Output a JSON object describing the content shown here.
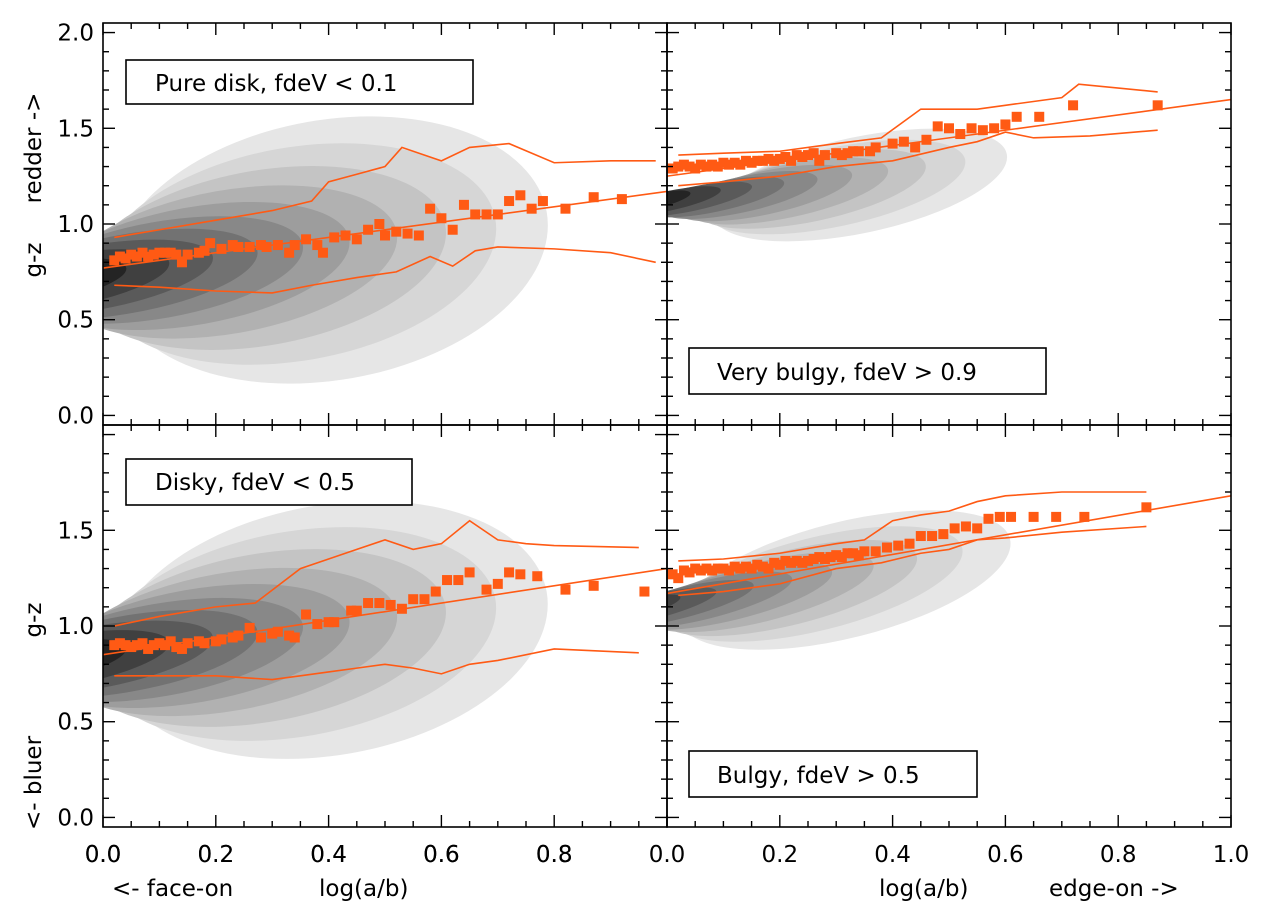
{
  "colors": {
    "accent": "#ff5a14",
    "contour_levels": [
      "#e6e6e6",
      "#d6d6d6",
      "#c4c4c4",
      "#b1b1b1",
      "#9d9d9d",
      "#888888",
      "#727272",
      "#5a5a5a",
      "#404040",
      "#242424"
    ]
  },
  "axes_text": {
    "xlabel_left": "<- face-on",
    "xlabel_left_mid": "log(a/b)",
    "xlabel_right_mid": "log(a/b)",
    "xlabel_right": "edge-on ->",
    "ylabel_top_extra": "redder ->",
    "ylabel_top": "g-z",
    "ylabel_bottom": "g-z",
    "ylabel_bottom_extra": "<- bluer"
  },
  "chart_data": [
    {
      "panel": "top-left",
      "type": "scatter",
      "annotation": "Pure disk, fdeV < 0.1",
      "xlim": [
        0,
        1.0
      ],
      "ylim": [
        -0.05,
        2.05
      ],
      "x_ticks": [
        "0.0",
        "0.2",
        "0.4",
        "0.6",
        "0.8"
      ],
      "y_ticks": [
        "0.0",
        "0.5",
        "1.0",
        "1.5",
        "2.0"
      ],
      "fit_line": [
        [
          0.0,
          0.77
        ],
        [
          1.0,
          1.17
        ]
      ],
      "upper_line": [
        [
          0.02,
          0.93
        ],
        [
          0.1,
          0.97
        ],
        [
          0.2,
          1.02
        ],
        [
          0.3,
          1.07
        ],
        [
          0.37,
          1.12
        ],
        [
          0.4,
          1.22
        ],
        [
          0.45,
          1.26
        ],
        [
          0.5,
          1.3
        ],
        [
          0.53,
          1.4
        ],
        [
          0.6,
          1.33
        ],
        [
          0.65,
          1.4
        ],
        [
          0.72,
          1.42
        ],
        [
          0.8,
          1.32
        ],
        [
          0.9,
          1.33
        ],
        [
          0.98,
          1.33
        ]
      ],
      "lower_line": [
        [
          0.02,
          0.68
        ],
        [
          0.1,
          0.67
        ],
        [
          0.2,
          0.65
        ],
        [
          0.3,
          0.64
        ],
        [
          0.37,
          0.68
        ],
        [
          0.45,
          0.72
        ],
        [
          0.52,
          0.75
        ],
        [
          0.58,
          0.83
        ],
        [
          0.62,
          0.78
        ],
        [
          0.66,
          0.86
        ],
        [
          0.7,
          0.88
        ],
        [
          0.8,
          0.87
        ],
        [
          0.9,
          0.85
        ],
        [
          0.98,
          0.8
        ]
      ],
      "points": [
        [
          0.02,
          0.81
        ],
        [
          0.03,
          0.83
        ],
        [
          0.04,
          0.82
        ],
        [
          0.05,
          0.84
        ],
        [
          0.06,
          0.83
        ],
        [
          0.07,
          0.85
        ],
        [
          0.08,
          0.83
        ],
        [
          0.09,
          0.84
        ],
        [
          0.1,
          0.85
        ],
        [
          0.11,
          0.85
        ],
        [
          0.12,
          0.85
        ],
        [
          0.13,
          0.84
        ],
        [
          0.14,
          0.8
        ],
        [
          0.15,
          0.84
        ],
        [
          0.17,
          0.85
        ],
        [
          0.18,
          0.86
        ],
        [
          0.19,
          0.9
        ],
        [
          0.21,
          0.87
        ],
        [
          0.23,
          0.89
        ],
        [
          0.24,
          0.88
        ],
        [
          0.26,
          0.88
        ],
        [
          0.28,
          0.89
        ],
        [
          0.29,
          0.88
        ],
        [
          0.31,
          0.89
        ],
        [
          0.33,
          0.85
        ],
        [
          0.34,
          0.89
        ],
        [
          0.36,
          0.92
        ],
        [
          0.38,
          0.89
        ],
        [
          0.39,
          0.85
        ],
        [
          0.41,
          0.93
        ],
        [
          0.43,
          0.94
        ],
        [
          0.45,
          0.92
        ],
        [
          0.47,
          0.97
        ],
        [
          0.49,
          1.0
        ],
        [
          0.5,
          0.94
        ],
        [
          0.52,
          0.96
        ],
        [
          0.54,
          0.95
        ],
        [
          0.56,
          0.94
        ],
        [
          0.58,
          1.08
        ],
        [
          0.6,
          1.03
        ],
        [
          0.62,
          0.97
        ],
        [
          0.64,
          1.1
        ],
        [
          0.66,
          1.05
        ],
        [
          0.68,
          1.05
        ],
        [
          0.7,
          1.05
        ],
        [
          0.72,
          1.12
        ],
        [
          0.74,
          1.15
        ],
        [
          0.76,
          1.08
        ],
        [
          0.78,
          1.12
        ],
        [
          0.82,
          1.08
        ],
        [
          0.87,
          1.14
        ],
        [
          0.92,
          1.13
        ]
      ]
    },
    {
      "panel": "top-right",
      "type": "scatter",
      "annotation": "Very bulgy, fdeV > 0.9",
      "xlim": [
        0,
        1.0
      ],
      "ylim": [
        -0.05,
        2.05
      ],
      "fit_line": [
        [
          0.0,
          1.25
        ],
        [
          1.0,
          1.65
        ]
      ],
      "upper_line": [
        [
          0.02,
          1.36
        ],
        [
          0.1,
          1.37
        ],
        [
          0.2,
          1.38
        ],
        [
          0.3,
          1.42
        ],
        [
          0.38,
          1.45
        ],
        [
          0.45,
          1.6
        ],
        [
          0.5,
          1.6
        ],
        [
          0.55,
          1.6
        ],
        [
          0.6,
          1.62
        ],
        [
          0.7,
          1.66
        ],
        [
          0.73,
          1.73
        ],
        [
          0.87,
          1.69
        ]
      ],
      "lower_line": [
        [
          0.02,
          1.2
        ],
        [
          0.1,
          1.22
        ],
        [
          0.2,
          1.25
        ],
        [
          0.3,
          1.3
        ],
        [
          0.4,
          1.33
        ],
        [
          0.5,
          1.4
        ],
        [
          0.55,
          1.43
        ],
        [
          0.6,
          1.48
        ],
        [
          0.65,
          1.45
        ],
        [
          0.75,
          1.46
        ],
        [
          0.87,
          1.49
        ]
      ],
      "points": [
        [
          0.01,
          1.29
        ],
        [
          0.02,
          1.3
        ],
        [
          0.03,
          1.31
        ],
        [
          0.04,
          1.3
        ],
        [
          0.05,
          1.29
        ],
        [
          0.06,
          1.31
        ],
        [
          0.07,
          1.3
        ],
        [
          0.08,
          1.31
        ],
        [
          0.09,
          1.3
        ],
        [
          0.1,
          1.32
        ],
        [
          0.11,
          1.31
        ],
        [
          0.12,
          1.32
        ],
        [
          0.13,
          1.31
        ],
        [
          0.14,
          1.33
        ],
        [
          0.15,
          1.32
        ],
        [
          0.16,
          1.33
        ],
        [
          0.17,
          1.33
        ],
        [
          0.18,
          1.34
        ],
        [
          0.19,
          1.33
        ],
        [
          0.2,
          1.34
        ],
        [
          0.21,
          1.35
        ],
        [
          0.22,
          1.33
        ],
        [
          0.23,
          1.36
        ],
        [
          0.24,
          1.35
        ],
        [
          0.25,
          1.36
        ],
        [
          0.26,
          1.37
        ],
        [
          0.27,
          1.33
        ],
        [
          0.28,
          1.36
        ],
        [
          0.3,
          1.37
        ],
        [
          0.31,
          1.36
        ],
        [
          0.32,
          1.37
        ],
        [
          0.33,
          1.38
        ],
        [
          0.34,
          1.38
        ],
        [
          0.36,
          1.38
        ],
        [
          0.37,
          1.4
        ],
        [
          0.4,
          1.42
        ],
        [
          0.42,
          1.43
        ],
        [
          0.44,
          1.4
        ],
        [
          0.46,
          1.44
        ],
        [
          0.48,
          1.51
        ],
        [
          0.5,
          1.5
        ],
        [
          0.52,
          1.47
        ],
        [
          0.54,
          1.5
        ],
        [
          0.56,
          1.49
        ],
        [
          0.58,
          1.5
        ],
        [
          0.6,
          1.52
        ],
        [
          0.62,
          1.56
        ],
        [
          0.66,
          1.56
        ],
        [
          0.72,
          1.62
        ],
        [
          0.87,
          1.62
        ]
      ]
    },
    {
      "panel": "bottom-left",
      "type": "scatter",
      "annotation": "Disky, fdeV < 0.5",
      "xlim": [
        0,
        1.0
      ],
      "ylim": [
        -0.05,
        2.05
      ],
      "x_ticks": [
        "0.0",
        "0.2",
        "0.4",
        "0.6",
        "0.8"
      ],
      "y_ticks": [
        "0.0",
        "0.5",
        "1.0",
        "1.5"
      ],
      "fit_line": [
        [
          0.0,
          0.85
        ],
        [
          1.0,
          1.3
        ]
      ],
      "upper_line": [
        [
          0.02,
          1.0
        ],
        [
          0.1,
          1.05
        ],
        [
          0.2,
          1.1
        ],
        [
          0.27,
          1.12
        ],
        [
          0.35,
          1.3
        ],
        [
          0.4,
          1.35
        ],
        [
          0.45,
          1.4
        ],
        [
          0.5,
          1.45
        ],
        [
          0.55,
          1.4
        ],
        [
          0.6,
          1.43
        ],
        [
          0.65,
          1.55
        ],
        [
          0.7,
          1.45
        ],
        [
          0.75,
          1.43
        ],
        [
          0.8,
          1.42
        ],
        [
          0.95,
          1.41
        ]
      ],
      "lower_line": [
        [
          0.02,
          0.74
        ],
        [
          0.1,
          0.74
        ],
        [
          0.2,
          0.74
        ],
        [
          0.3,
          0.72
        ],
        [
          0.35,
          0.74
        ],
        [
          0.4,
          0.76
        ],
        [
          0.45,
          0.78
        ],
        [
          0.5,
          0.8
        ],
        [
          0.55,
          0.78
        ],
        [
          0.6,
          0.75
        ],
        [
          0.65,
          0.8
        ],
        [
          0.7,
          0.82
        ],
        [
          0.8,
          0.88
        ],
        [
          0.95,
          0.86
        ]
      ],
      "points": [
        [
          0.02,
          0.9
        ],
        [
          0.03,
          0.91
        ],
        [
          0.04,
          0.9
        ],
        [
          0.05,
          0.89
        ],
        [
          0.06,
          0.9
        ],
        [
          0.07,
          0.91
        ],
        [
          0.08,
          0.88
        ],
        [
          0.09,
          0.9
        ],
        [
          0.1,
          0.91
        ],
        [
          0.11,
          0.9
        ],
        [
          0.12,
          0.92
        ],
        [
          0.13,
          0.89
        ],
        [
          0.14,
          0.88
        ],
        [
          0.15,
          0.91
        ],
        [
          0.17,
          0.92
        ],
        [
          0.18,
          0.91
        ],
        [
          0.2,
          0.92
        ],
        [
          0.21,
          0.93
        ],
        [
          0.23,
          0.94
        ],
        [
          0.24,
          0.95
        ],
        [
          0.26,
          0.99
        ],
        [
          0.28,
          0.94
        ],
        [
          0.3,
          0.96
        ],
        [
          0.31,
          0.97
        ],
        [
          0.33,
          0.95
        ],
        [
          0.34,
          0.94
        ],
        [
          0.36,
          1.06
        ],
        [
          0.38,
          1.01
        ],
        [
          0.4,
          1.02
        ],
        [
          0.41,
          1.02
        ],
        [
          0.44,
          1.08
        ],
        [
          0.45,
          1.08
        ],
        [
          0.47,
          1.12
        ],
        [
          0.49,
          1.12
        ],
        [
          0.51,
          1.11
        ],
        [
          0.53,
          1.09
        ],
        [
          0.55,
          1.14
        ],
        [
          0.57,
          1.14
        ],
        [
          0.59,
          1.18
        ],
        [
          0.61,
          1.24
        ],
        [
          0.63,
          1.24
        ],
        [
          0.65,
          1.28
        ],
        [
          0.68,
          1.19
        ],
        [
          0.7,
          1.22
        ],
        [
          0.72,
          1.28
        ],
        [
          0.74,
          1.27
        ],
        [
          0.77,
          1.26
        ],
        [
          0.82,
          1.19
        ],
        [
          0.87,
          1.21
        ],
        [
          0.96,
          1.18
        ]
      ]
    },
    {
      "panel": "bottom-right",
      "type": "scatter",
      "annotation": "Bulgy, fdeV > 0.5",
      "xlim": [
        0,
        1.0
      ],
      "ylim": [
        -0.05,
        2.05
      ],
      "x_ticks": [
        "0.0",
        "0.2",
        "0.4",
        "0.6",
        "0.8",
        "1.0"
      ],
      "fit_line": [
        [
          0.0,
          1.17
        ],
        [
          1.0,
          1.68
        ]
      ],
      "upper_line": [
        [
          0.02,
          1.34
        ],
        [
          0.1,
          1.35
        ],
        [
          0.2,
          1.38
        ],
        [
          0.3,
          1.43
        ],
        [
          0.35,
          1.45
        ],
        [
          0.4,
          1.55
        ],
        [
          0.45,
          1.58
        ],
        [
          0.5,
          1.6
        ],
        [
          0.55,
          1.65
        ],
        [
          0.6,
          1.68
        ],
        [
          0.7,
          1.7
        ],
        [
          0.85,
          1.7
        ]
      ],
      "lower_line": [
        [
          0.02,
          1.16
        ],
        [
          0.1,
          1.18
        ],
        [
          0.2,
          1.22
        ],
        [
          0.3,
          1.3
        ],
        [
          0.38,
          1.33
        ],
        [
          0.45,
          1.38
        ],
        [
          0.5,
          1.4
        ],
        [
          0.55,
          1.45
        ],
        [
          0.6,
          1.46
        ],
        [
          0.7,
          1.49
        ],
        [
          0.85,
          1.52
        ]
      ],
      "points": [
        [
          0.01,
          1.27
        ],
        [
          0.02,
          1.25
        ],
        [
          0.03,
          1.29
        ],
        [
          0.04,
          1.28
        ],
        [
          0.05,
          1.3
        ],
        [
          0.06,
          1.29
        ],
        [
          0.07,
          1.3
        ],
        [
          0.08,
          1.29
        ],
        [
          0.09,
          1.3
        ],
        [
          0.1,
          1.3
        ],
        [
          0.11,
          1.29
        ],
        [
          0.12,
          1.31
        ],
        [
          0.13,
          1.3
        ],
        [
          0.14,
          1.31
        ],
        [
          0.15,
          1.3
        ],
        [
          0.16,
          1.32
        ],
        [
          0.17,
          1.31
        ],
        [
          0.18,
          1.3
        ],
        [
          0.19,
          1.33
        ],
        [
          0.2,
          1.32
        ],
        [
          0.21,
          1.34
        ],
        [
          0.22,
          1.33
        ],
        [
          0.23,
          1.34
        ],
        [
          0.24,
          1.33
        ],
        [
          0.25,
          1.34
        ],
        [
          0.26,
          1.35
        ],
        [
          0.27,
          1.36
        ],
        [
          0.28,
          1.35
        ],
        [
          0.29,
          1.36
        ],
        [
          0.3,
          1.37
        ],
        [
          0.31,
          1.36
        ],
        [
          0.32,
          1.38
        ],
        [
          0.33,
          1.38
        ],
        [
          0.34,
          1.37
        ],
        [
          0.35,
          1.39
        ],
        [
          0.37,
          1.39
        ],
        [
          0.39,
          1.41
        ],
        [
          0.41,
          1.42
        ],
        [
          0.43,
          1.43
        ],
        [
          0.45,
          1.47
        ],
        [
          0.47,
          1.47
        ],
        [
          0.49,
          1.48
        ],
        [
          0.51,
          1.51
        ],
        [
          0.53,
          1.52
        ],
        [
          0.55,
          1.51
        ],
        [
          0.57,
          1.56
        ],
        [
          0.59,
          1.57
        ],
        [
          0.61,
          1.57
        ],
        [
          0.65,
          1.57
        ],
        [
          0.69,
          1.57
        ],
        [
          0.74,
          1.57
        ],
        [
          0.85,
          1.62
        ]
      ]
    }
  ]
}
